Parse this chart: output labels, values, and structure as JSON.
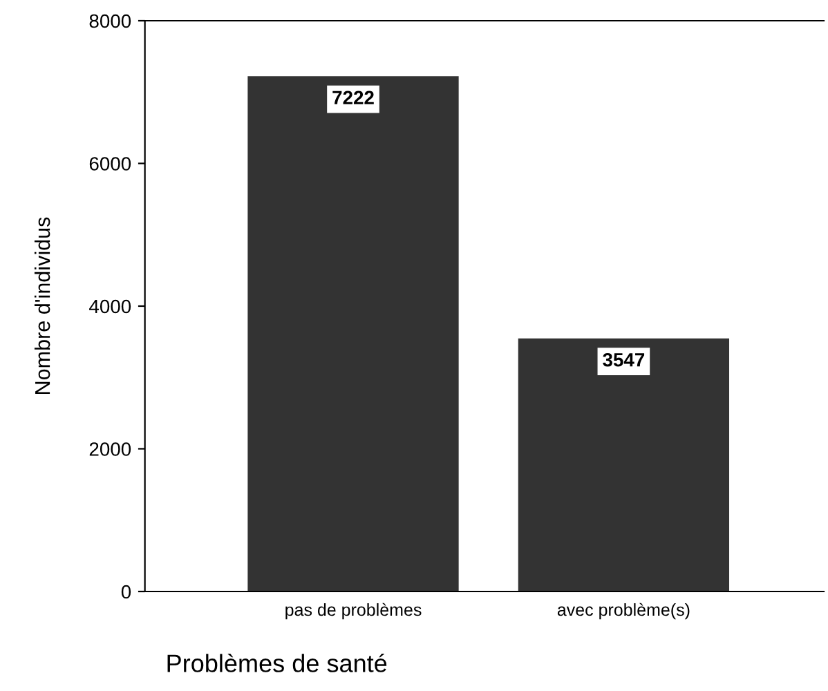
{
  "chart_data": {
    "type": "bar",
    "xlabel": "Problèmes de santé",
    "ylabel": "Nombre d'individus",
    "categories": [
      "pas de problèmes",
      "avec problème(s)"
    ],
    "values": [
      7222,
      3547
    ],
    "color": "#333333",
    "data_labels": true,
    "ylim": [
      0,
      8000
    ],
    "yticks": [
      0,
      2000,
      4000,
      6000,
      8000
    ],
    "grid": false,
    "legend": false
  }
}
